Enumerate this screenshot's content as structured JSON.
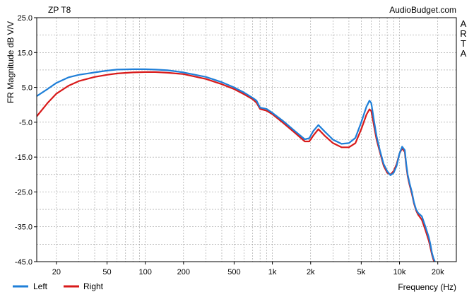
{
  "chart_data": {
    "type": "line",
    "title": "ZP T8",
    "source": "AudioBudget.com",
    "side_label": [
      "A",
      "R",
      "T",
      "A"
    ],
    "xlabel": "Frequency (Hz)",
    "ylabel": "FR Magnitude dB V/V",
    "x_scale": "log",
    "xlim": [
      14,
      28000
    ],
    "ylim": [
      -45,
      25
    ],
    "grid": true,
    "legend_placement": "bottom-left",
    "x_ticks": [
      {
        "value": 20,
        "label": "20"
      },
      {
        "value": 50,
        "label": "50"
      },
      {
        "value": 100,
        "label": "100"
      },
      {
        "value": 200,
        "label": "200"
      },
      {
        "value": 500,
        "label": "500"
      },
      {
        "value": 1000,
        "label": "1k"
      },
      {
        "value": 2000,
        "label": "2k"
      },
      {
        "value": 5000,
        "label": "5k"
      },
      {
        "value": 10000,
        "label": "10k"
      },
      {
        "value": 20000,
        "label": "20k"
      }
    ],
    "y_ticks": [
      {
        "value": 25,
        "label": "25.0"
      },
      {
        "value": 15,
        "label": "15.0"
      },
      {
        "value": 5,
        "label": "5.0"
      },
      {
        "value": -5,
        "label": "-5.0"
      },
      {
        "value": -15,
        "label": "-15.0"
      },
      {
        "value": -25,
        "label": "-25.0"
      },
      {
        "value": -35,
        "label": "-35.0"
      },
      {
        "value": -45,
        "label": "-45.0"
      }
    ],
    "series": [
      {
        "name": "Left",
        "color": "#1f7fd8",
        "x": [
          14,
          17,
          20,
          25,
          30,
          40,
          50,
          60,
          80,
          100,
          120,
          150,
          200,
          300,
          400,
          500,
          600,
          700,
          750,
          800,
          900,
          1000,
          1200,
          1500,
          1800,
          1950,
          2100,
          2300,
          2600,
          3000,
          3500,
          4000,
          4500,
          5000,
          5500,
          5800,
          6000,
          6300,
          6600,
          7000,
          7500,
          8000,
          8500,
          9000,
          9500,
          10000,
          10500,
          11000,
          11300,
          11600,
          12000,
          12500,
          13000,
          13500,
          14000,
          15000,
          16000,
          17000,
          17500,
          18000,
          18500,
          19000,
          19500
        ],
        "y": [
          2.5,
          4.5,
          6.3,
          7.9,
          8.6,
          9.3,
          9.8,
          10.1,
          10.2,
          10.2,
          10.1,
          9.9,
          9.3,
          8.0,
          6.5,
          5.0,
          3.5,
          2.0,
          1.2,
          -0.8,
          -1.2,
          -2.3,
          -4.5,
          -7.5,
          -9.9,
          -9.6,
          -7.5,
          -5.8,
          -7.8,
          -10.0,
          -11.2,
          -11.0,
          -9.5,
          -5.0,
          -0.5,
          1.2,
          0.5,
          -4.5,
          -9.0,
          -13.0,
          -17.0,
          -19.0,
          -20.2,
          -19.5,
          -17.5,
          -14.0,
          -12.0,
          -13.0,
          -17.0,
          -20.0,
          -22.5,
          -25.0,
          -28.0,
          -30.0,
          -31.0,
          -32.0,
          -35.0,
          -38.0,
          -40.0,
          -42.5,
          -44.0,
          -45.0,
          -46.0
        ]
      },
      {
        "name": "Right",
        "color": "#d81a1a",
        "x": [
          14,
          17,
          20,
          25,
          30,
          40,
          50,
          60,
          80,
          100,
          120,
          150,
          200,
          300,
          400,
          500,
          600,
          700,
          750,
          800,
          900,
          1000,
          1200,
          1500,
          1800,
          1950,
          2100,
          2300,
          2600,
          3000,
          3500,
          4000,
          4500,
          5000,
          5500,
          5800,
          6000,
          6300,
          6600,
          7000,
          7500,
          8000,
          8500,
          9000,
          9500,
          10000,
          10500,
          11000,
          11300,
          11600,
          12000,
          12500,
          13000,
          13500,
          14000,
          15000,
          16000,
          17000,
          17500,
          18000,
          18500,
          19000,
          19500
        ],
        "y": [
          -3.3,
          0.5,
          3.2,
          5.5,
          6.8,
          8.0,
          8.6,
          9.0,
          9.3,
          9.4,
          9.4,
          9.2,
          8.8,
          7.4,
          5.9,
          4.5,
          3.0,
          1.6,
          0.6,
          -1.2,
          -1.7,
          -2.7,
          -5.0,
          -8.0,
          -10.5,
          -10.5,
          -8.8,
          -7.0,
          -9.0,
          -11.0,
          -12.2,
          -12.2,
          -11.0,
          -7.0,
          -2.8,
          -1.3,
          -1.8,
          -6.0,
          -10.0,
          -13.5,
          -17.5,
          -19.5,
          -20.0,
          -19.0,
          -17.0,
          -14.0,
          -12.5,
          -13.5,
          -17.5,
          -20.5,
          -23.0,
          -25.5,
          -28.3,
          -30.3,
          -31.5,
          -33.0,
          -36.0,
          -39.0,
          -41.0,
          -43.0,
          -44.5,
          -45.5,
          -46.5
        ]
      }
    ]
  }
}
